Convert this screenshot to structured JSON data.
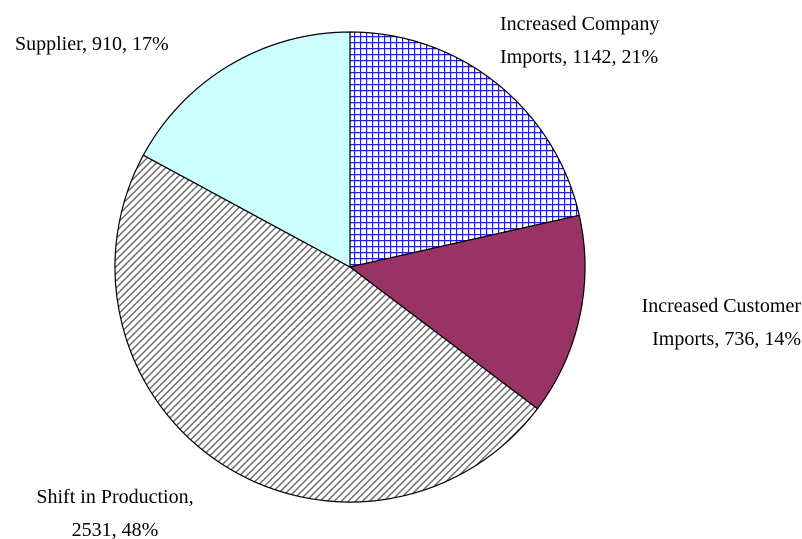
{
  "chart_data": {
    "type": "pie",
    "title": "",
    "start_angle_deg": 0,
    "direction": "clockwise",
    "slices": [
      {
        "name": "Increased Company Imports",
        "value": 1142,
        "percent": "21%",
        "label_lines": [
          "Increased Company",
          "Imports, 1142, 21%"
        ],
        "pattern": "grid",
        "color": "#1f1fd6",
        "background": "#ffffff"
      },
      {
        "name": "Increased Customer Imports",
        "value": 736,
        "percent": "14%",
        "label_lines": [
          "Increased Customer",
          "Imports, 736, 14%"
        ],
        "pattern": "solid",
        "color": "#993366",
        "background": "#993366"
      },
      {
        "name": "Shift in Production",
        "value": 2531,
        "percent": "48%",
        "label_lines": [
          "Shift in Production,",
          "2531, 48%"
        ],
        "pattern": "diagonal",
        "color": "#808080",
        "background": "#ffffff"
      },
      {
        "name": "Supplier",
        "value": 910,
        "percent": "17%",
        "label_lines": [
          "Supplier, 910, 17%"
        ],
        "pattern": "solid",
        "color": "#ccffff",
        "background": "#ccffff"
      }
    ]
  }
}
